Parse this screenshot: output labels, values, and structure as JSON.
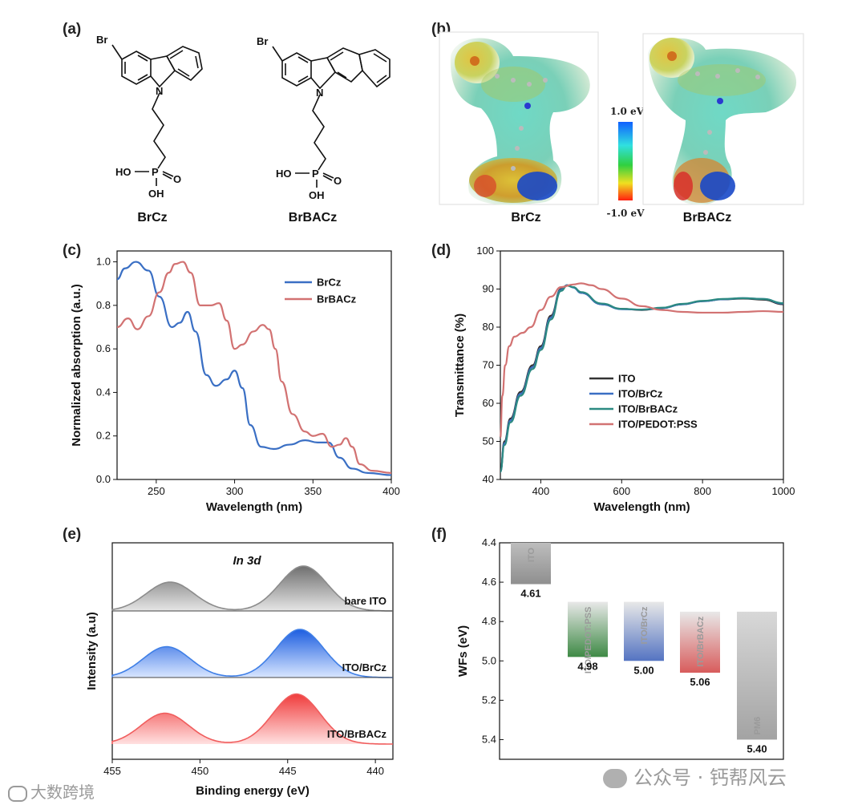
{
  "panel_labels": [
    "(a)",
    "(b)",
    "(c)",
    "(d)",
    "(e)",
    "(f)"
  ],
  "panel_a": {
    "molecules": [
      {
        "name": "BrCz",
        "br": "Br",
        "n": "N",
        "ho": "HO",
        "p": "P",
        "o": "O",
        "oh": "OH"
      },
      {
        "name": "BrBACz",
        "br": "Br",
        "n": "N",
        "ho": "HO",
        "p": "P",
        "o": "O",
        "oh": "OH"
      }
    ]
  },
  "panel_b": {
    "captions": [
      "BrCz",
      "BrBACz"
    ],
    "colorbar": {
      "max": "1.0 eV",
      "min": "-1.0 eV",
      "colors": [
        "#1060ff",
        "#30e0e0",
        "#30d040",
        "#f0e020",
        "#ff2010"
      ]
    }
  },
  "chart_data": [
    {
      "type": "line",
      "panel": "(c)",
      "xlabel": "Wavelength (nm)",
      "ylabel": "Normalized absorption (a.u.)",
      "xlim": [
        225,
        400
      ],
      "ylim": [
        0,
        1.05
      ],
      "xticks": [
        250,
        300,
        350,
        400
      ],
      "yticks": [
        0.0,
        0.2,
        0.4,
        0.6,
        0.8,
        1.0
      ],
      "legend_position": "top-right",
      "series": [
        {
          "name": "BrCz",
          "color": "#3a6fc4",
          "x": [
            225,
            230,
            237,
            245,
            252,
            260,
            265,
            270,
            275,
            282,
            288,
            295,
            300,
            305,
            310,
            317,
            325,
            335,
            345,
            353,
            360,
            367,
            375,
            385,
            400
          ],
          "y": [
            0.92,
            0.97,
            1.0,
            0.96,
            0.84,
            0.7,
            0.72,
            0.77,
            0.68,
            0.48,
            0.43,
            0.46,
            0.5,
            0.42,
            0.25,
            0.15,
            0.14,
            0.16,
            0.18,
            0.17,
            0.17,
            0.1,
            0.05,
            0.03,
            0.02
          ]
        },
        {
          "name": "BrBACz",
          "color": "#d27272",
          "x": [
            225,
            232,
            238,
            245,
            252,
            258,
            262,
            267,
            272,
            278,
            285,
            290,
            295,
            300,
            305,
            312,
            318,
            322,
            326,
            330,
            337,
            345,
            350,
            356,
            362,
            367,
            371,
            375,
            380,
            388,
            400
          ],
          "y": [
            0.7,
            0.74,
            0.69,
            0.75,
            0.86,
            0.95,
            0.99,
            1.0,
            0.95,
            0.8,
            0.8,
            0.81,
            0.73,
            0.6,
            0.62,
            0.68,
            0.71,
            0.69,
            0.6,
            0.45,
            0.3,
            0.22,
            0.2,
            0.21,
            0.15,
            0.16,
            0.19,
            0.15,
            0.07,
            0.04,
            0.03
          ]
        }
      ]
    },
    {
      "type": "line",
      "panel": "(d)",
      "xlabel": "Wavelength (nm)",
      "ylabel": "Transmittance (%)",
      "xlim": [
        300,
        1000
      ],
      "ylim": [
        40,
        100
      ],
      "xticks": [
        400,
        600,
        800,
        1000
      ],
      "yticks": [
        40,
        50,
        60,
        70,
        80,
        90,
        100
      ],
      "legend_position": "bottom-center",
      "series": [
        {
          "name": "ITO",
          "color": "#333333",
          "x": [
            300,
            310,
            325,
            350,
            380,
            400,
            425,
            450,
            465,
            480,
            500,
            550,
            600,
            650,
            700,
            750,
            800,
            850,
            900,
            950,
            1000
          ],
          "y": [
            42,
            50,
            56,
            63,
            70,
            75,
            83,
            90,
            91,
            90.5,
            89,
            86,
            84.8,
            84.5,
            85,
            86,
            86.8,
            87.3,
            87.5,
            87.2,
            86
          ]
        },
        {
          "name": "ITO/BrCz",
          "color": "#3a6fc4",
          "x": [
            300,
            310,
            325,
            350,
            380,
            400,
            425,
            450,
            465,
            480,
            500,
            550,
            600,
            650,
            700,
            750,
            800,
            850,
            900,
            950,
            1000
          ],
          "y": [
            42,
            49.5,
            55.5,
            62.5,
            69.5,
            74.5,
            82.5,
            89.8,
            91,
            90.4,
            89,
            86,
            84.7,
            84.6,
            85,
            86,
            86.8,
            87.3,
            87.6,
            87.4,
            86.2
          ]
        },
        {
          "name": "ITO/BrBACz",
          "color": "#2c8a82",
          "x": [
            300,
            310,
            325,
            350,
            380,
            400,
            425,
            450,
            465,
            480,
            500,
            550,
            600,
            650,
            700,
            750,
            800,
            850,
            900,
            950,
            1000
          ],
          "y": [
            42,
            49,
            55,
            62,
            69,
            74,
            82,
            89.5,
            90.9,
            90.5,
            89.2,
            86.2,
            84.8,
            84.6,
            85.1,
            86.1,
            86.9,
            87.4,
            87.6,
            87.4,
            86.3
          ]
        },
        {
          "name": "ITO/PEDOT:PSS",
          "color": "#d27272",
          "x": [
            300,
            305,
            312,
            322,
            335,
            355,
            375,
            400,
            425,
            450,
            480,
            500,
            525,
            550,
            600,
            650,
            700,
            750,
            800,
            850,
            900,
            950,
            1000
          ],
          "y": [
            51,
            62,
            70,
            75,
            77.5,
            78.5,
            80,
            84.5,
            88,
            90.5,
            91.2,
            91.5,
            91,
            90,
            87.5,
            85.5,
            84.5,
            84,
            83.8,
            83.8,
            84,
            84.2,
            84
          ]
        }
      ]
    },
    {
      "type": "area",
      "panel": "(e)",
      "xlabel": "Binding energy (eV)",
      "ylabel": "Intensity (a.u)",
      "annotation": "In 3d",
      "xlim": [
        455,
        439
      ],
      "xticks": [
        455,
        450,
        445,
        440
      ],
      "x_reversed": true,
      "series": [
        {
          "name": "bare ITO",
          "color": "#8c8c8c",
          "peaks": [
            {
              "x": 451.7,
              "h": 0.45
            },
            {
              "x": 444.1,
              "h": 0.7
            }
          ]
        },
        {
          "name": "ITO/BrCz",
          "color": "#3f7fe6",
          "peaks": [
            {
              "x": 451.9,
              "h": 0.48
            },
            {
              "x": 444.3,
              "h": 0.75
            }
          ]
        },
        {
          "name": "ITO/BrBACz",
          "color": "#f05d5d",
          "peaks": [
            {
              "x": 452.0,
              "h": 0.48
            },
            {
              "x": 444.5,
              "h": 0.78
            }
          ]
        }
      ]
    },
    {
      "type": "bar",
      "panel": "(f)",
      "ylabel": "WFs (eV)",
      "ylim": [
        4.4,
        5.5
      ],
      "y_reversed": true,
      "yticks": [
        4.4,
        4.6,
        4.8,
        5.0,
        5.2,
        5.4
      ],
      "ytick_labels": [
        "4.4",
        "4.6",
        "4.8",
        "5.0",
        "5.2",
        "5.4"
      ],
      "categories": [
        "ITO",
        "ITO/PEDOT:PSS",
        "ITO/BrCz",
        "ITO/BrBACz",
        "PM6"
      ],
      "values": [
        4.61,
        4.98,
        5.0,
        5.06,
        5.4
      ],
      "value_labels": [
        "4.61",
        "4.98",
        "5.00",
        "5.06",
        "5.40"
      ],
      "bar_tops": [
        4.4,
        4.7,
        4.7,
        4.75,
        4.75
      ],
      "colors": [
        "#9a9a9a",
        "#3e8a45",
        "#5474c2",
        "#d85c5c",
        "#a3a3a3"
      ]
    }
  ],
  "watermarks": [
    "大数跨境",
    "公众号 · 钙帮风云"
  ]
}
